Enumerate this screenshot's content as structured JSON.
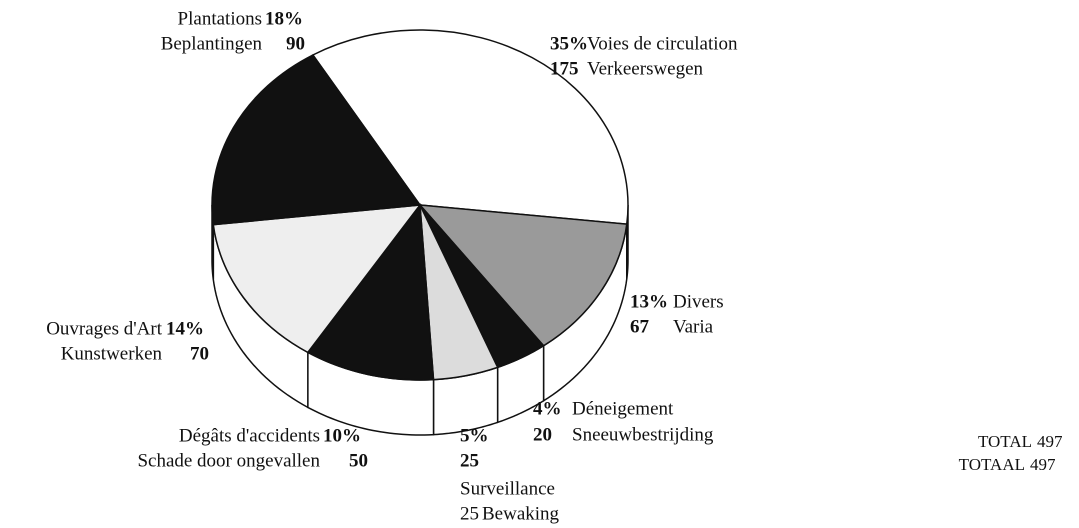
{
  "chart_data": {
    "type": "pie",
    "categories": [
      "Voies de circulation",
      "Divers",
      "Déneigement",
      "Surveillance",
      "Dégâts d'accidents",
      "Ouvrages d'Art",
      "Plantations"
    ],
    "categories_nl": [
      "Verkeerswegen",
      "Varia",
      "Sneeuwbestrijding",
      "Bewaking",
      "Schade door ongevallen",
      "Kunstwerken",
      "Beplantingen"
    ],
    "values": [
      35,
      13,
      4,
      5,
      10,
      14,
      18
    ],
    "value_labels": [
      "35%",
      "13%",
      "4%",
      "5%",
      "10%",
      "14%",
      "18%"
    ],
    "amounts": [
      175,
      67,
      20,
      25,
      50,
      70,
      90
    ],
    "colors": [
      "#ffffff",
      "#9a9a9a",
      "#111111",
      "#dcdcdc",
      "#111111",
      "#eeeeee",
      "#111111"
    ],
    "total_labels": [
      "TOTAL",
      "TOTAAL"
    ],
    "total": 497
  }
}
